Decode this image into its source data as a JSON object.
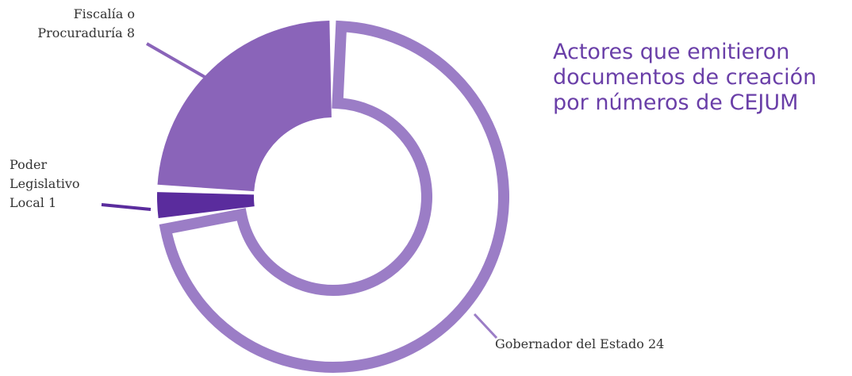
{
  "chart_data": {
    "type": "donut",
    "title": [
      "Actores que emitieron",
      "documentos de creación",
      "por números de CEJUM"
    ],
    "categories": [
      "Gobernador del Estado",
      "Poder Legislativo Local",
      "Fiscalía o Procuraduría"
    ],
    "values": [
      24,
      1,
      8
    ],
    "colors": [
      "#9b7dc6",
      "#5a2c9d",
      "#8a64b9"
    ]
  }
}
